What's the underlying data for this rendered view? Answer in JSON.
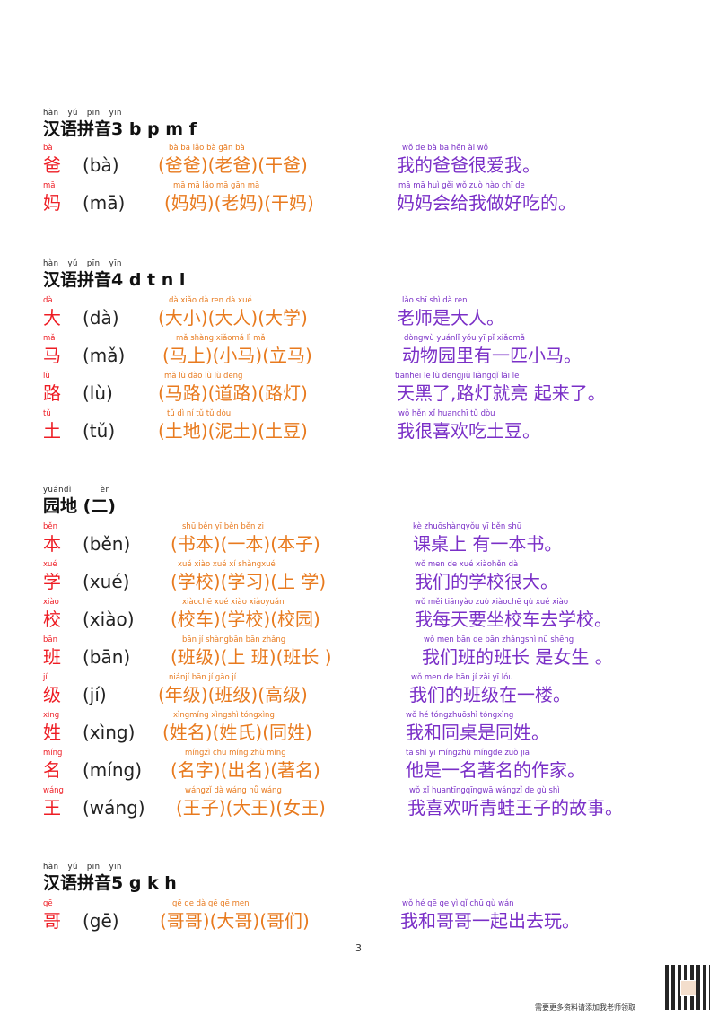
{
  "page_number": "3",
  "footer_text": "需要更多资料请添加我老师领取",
  "colors": {
    "character": "#ee1d24",
    "words": "#e87a1e",
    "sentence": "#7a2fc7"
  },
  "sections": [
    {
      "title_pinyin": [
        "hàn",
        "yǔ",
        "pīn",
        "yīn"
      ],
      "title": "汉语拼音3 b p m f",
      "rows": [
        {
          "char_py": "bà",
          "char": "爸",
          "reading": "(bà)",
          "words_py": "bà  ba    lǎo bà    gān bà",
          "words": "(爸爸)(老爸)(干爸)",
          "sent_py": "wǒ  de  bà  ba  hěn ài  wǒ",
          "sentence": "我的爸爸很爱我。"
        },
        {
          "char_py": "mā",
          "char": "妈",
          "reading": "(mā)",
          "words_py": "mā mā    lǎo mā    gān mā",
          "words": "(妈妈)(老妈)(干妈)",
          "sent_py": "mā mā  huì gěi wǒ  zuò hào chī de",
          "sentence": "妈妈会给我做好吃的。"
        }
      ]
    },
    {
      "title_pinyin": [
        "hàn",
        "yǔ",
        "pīn",
        "yīn"
      ],
      "title": "汉语拼音4  d t n l",
      "rows": [
        {
          "char_py": "dà",
          "char": "大",
          "reading": "(dà)",
          "words_py": "dà xiǎo    dà  ren    dà  xué",
          "words": "(大小)(大人)(大学)",
          "sent_py": "lǎo shī shì dà  ren",
          "sentence": "老师是大人。"
        },
        {
          "char_py": "mǎ",
          "char": "马",
          "reading": "(mǎ)",
          "words_py": "mǎ shàng    xiǎomǎ    lì  mǎ",
          "words": "(马上)(小马)(立马)",
          "sent_py": "dòngwù yuánlǐ  yǒu yī  pǐ  xiǎomǎ",
          "sentence": "动物园里有一匹小马。"
        },
        {
          "char_py": "lù",
          "char": "路",
          "reading": "(lù)",
          "words_py": "mǎ  lù    dào lù    lù  dēng",
          "words": "(马路)(道路)(路灯)",
          "sent_py": "tiānhēi le   lù  dēngjiù liàngqǐ  lái le",
          "sentence": "天黑了,路灯就亮 起来了。"
        },
        {
          "char_py": "tǔ",
          "char": "土",
          "reading": "(tǔ)",
          "words_py": "tǔ  dì    ní  tǔ    tǔ  dòu",
          "words": "(土地)(泥土)(土豆)",
          "sent_py": "wǒ  hěn xǐ  huanchī tǔ  dòu",
          "sentence": "我很喜欢吃土豆。"
        }
      ]
    },
    {
      "title_pinyin": [
        "yuándì",
        "èr"
      ],
      "title": "园地 (二)",
      "rows": [
        {
          "char_py": "běn",
          "char": "本",
          "reading": "(běn)",
          "words_py": "shū běn    yī  běn    běn zi",
          "words": "(书本)(一本)(本子)",
          "sent_py": "kè  zhuōshàngyǒu yī  běn shū",
          "sentence": "课桌上 有一本书。"
        },
        {
          "char_py": "xué",
          "char": "学",
          "reading": "(xué)",
          "words_py": "xué xiào    xué xí    shàngxué",
          "words": "(学校)(学习)(上 学)",
          "sent_py": "wǒ  men de  xué xiàohěn dà",
          "sentence": "我们的学校很大。"
        },
        {
          "char_py": "xiào",
          "char": "校",
          "reading": "(xiào)",
          "words_py": "xiàochē    xué xiào    xiàoyuán",
          "words": "(校车)(学校)(校园)",
          "sent_py": "wǒ  měi tiānyào zuò xiàochē qù  xué xiào",
          "sentence": "我每天要坐校车去学校。"
        },
        {
          "char_py": "bān",
          "char": "班",
          "reading": "(bān)",
          "words_py": "bān jí    shàngbān    bān zhǎng",
          "words": "(班级)(上 班)(班长 )",
          "sent_py": "wǒ  men bān de bān zhǎngshì nǚ  shēng",
          "sentence": "我们班的班长 是女生 。"
        },
        {
          "char_py": "jí",
          "char": "级",
          "reading": "(jí)",
          "words_py": "niánjí    bān jí    gāo jí",
          "words": "(年级)(班级)(高级)",
          "sent_py": "wǒ  men de  bān jí  zài yī  lóu",
          "sentence": "我们的班级在一楼。"
        },
        {
          "char_py": "xìng",
          "char": "姓",
          "reading": "(xìng)",
          "words_py": "xìngmíng    xìngshì    tóngxìng",
          "words": "(姓名)(姓氏)(同姓)",
          "sent_py": "wǒ  hé  tóngzhuōshì tóngxìng",
          "sentence": "我和同桌是同姓。"
        },
        {
          "char_py": "míng",
          "char": "名",
          "reading": "(míng)",
          "words_py": "míngzì    chū míng    zhù míng",
          "words": "(名字)(出名)(著名)",
          "sent_py": "tā  shì yī  míngzhù míngde  zuò jiā",
          "sentence": "他是一名著名的作家。"
        },
        {
          "char_py": "wáng",
          "char": "王",
          "reading": "(wáng)",
          "words_py": "wángzǐ    dà  wáng    nǚ  wáng",
          "words": "(王子)(大王)(女王)",
          "sent_py": "wǒ  xǐ  huantīngqīngwā  wángzǐ  de  gù  shì",
          "sentence": "我喜欢听青蛙王子的故事。"
        }
      ]
    },
    {
      "title_pinyin": [
        "hàn",
        "yǔ",
        "pīn",
        "yīn"
      ],
      "title": "汉语拼音5   g k h",
      "rows": [
        {
          "char_py": "gē",
          "char": "哥",
          "reading": "(gē)",
          "words_py": "gē  ge    dà  gē    gē  men",
          "words": "(哥哥)(大哥)(哥们)",
          "sent_py": "wǒ  hé  gē  ge  yì  qǐ  chū qù  wán",
          "sentence": "我和哥哥一起出去玩。"
        }
      ]
    }
  ]
}
